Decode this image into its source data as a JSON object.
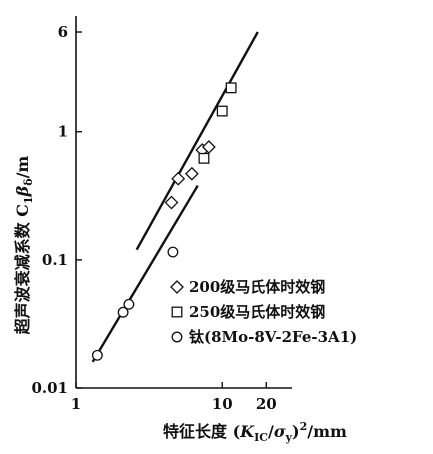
{
  "chart_data": {
    "type": "scatter",
    "xlabel": "特征长度 (K_IC/σ_y)²/mm",
    "ylabel": "超声波衰减系数 C₁β_δ/m",
    "x_scale": "log",
    "y_scale": "log",
    "xlim": [
      1,
      30
    ],
    "ylim": [
      0.01,
      8
    ],
    "x_ticks": [
      1,
      10,
      20
    ],
    "x_tick_labels": [
      "1",
      "10",
      "20"
    ],
    "y_ticks": [
      0.01,
      0.1,
      1,
      6
    ],
    "y_tick_labels": [
      "0.01",
      "0.1",
      "1",
      "6"
    ],
    "grid": false,
    "legend_position": "bottom-right",
    "series": [
      {
        "name": "200级马氏体时效钢",
        "marker": "diamond",
        "points": [
          [
            4.5,
            0.28
          ],
          [
            5.0,
            0.43
          ],
          [
            6.2,
            0.47
          ],
          [
            7.3,
            0.72
          ],
          [
            8.1,
            0.76
          ]
        ]
      },
      {
        "name": "250级马氏体时效钢",
        "marker": "square",
        "points": [
          [
            7.5,
            0.62
          ],
          [
            10.0,
            1.45
          ],
          [
            11.5,
            2.2
          ]
        ]
      },
      {
        "name": "钛(8Mo-8V-2Fe-3A1)",
        "marker": "circle",
        "points": [
          [
            1.4,
            0.018
          ],
          [
            2.1,
            0.039
          ],
          [
            2.3,
            0.045
          ],
          [
            4.6,
            0.115
          ]
        ]
      }
    ],
    "fit_lines": [
      {
        "x": [
          2.6,
          17.5
        ],
        "y": [
          0.12,
          6.0
        ]
      },
      {
        "x": [
          1.3,
          6.8
        ],
        "y": [
          0.016,
          0.38
        ]
      }
    ]
  }
}
